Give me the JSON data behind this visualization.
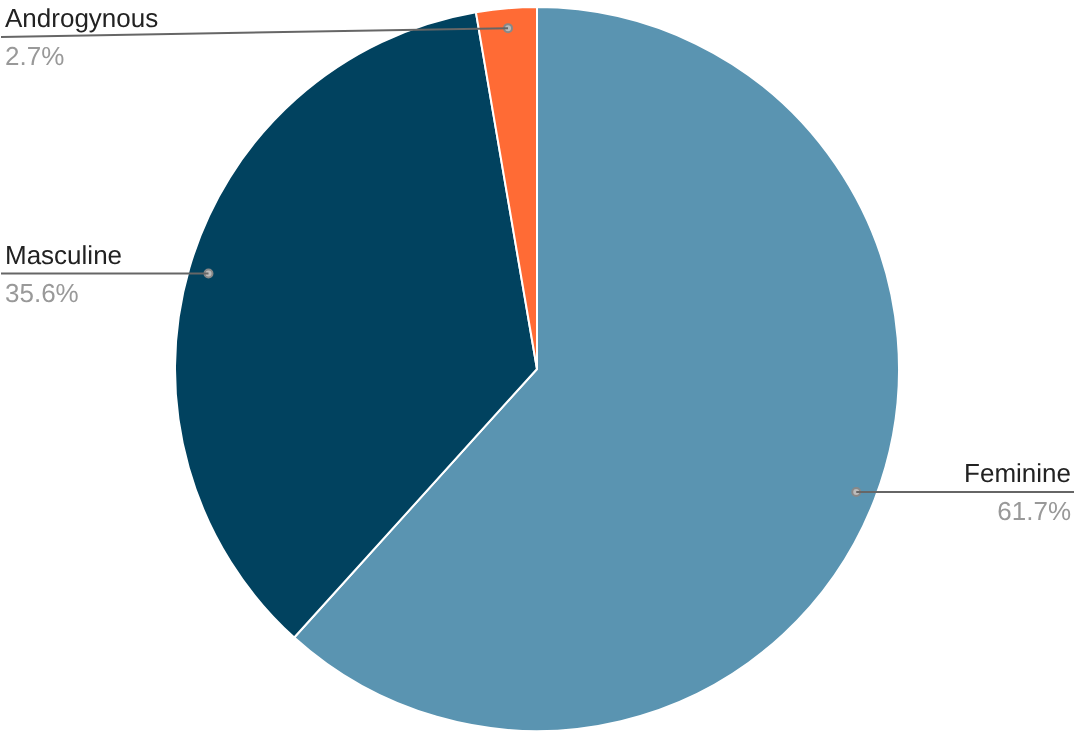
{
  "chart_data": {
    "type": "pie",
    "categories": [
      "Feminine",
      "Masculine",
      "Androgynous"
    ],
    "values": [
      61.7,
      35.6,
      2.7
    ],
    "colors": [
      "#5a94b1",
      "#01425f",
      "#ff6b35"
    ],
    "value_labels": [
      "61.7%",
      "35.6%",
      "2.7%"
    ]
  }
}
